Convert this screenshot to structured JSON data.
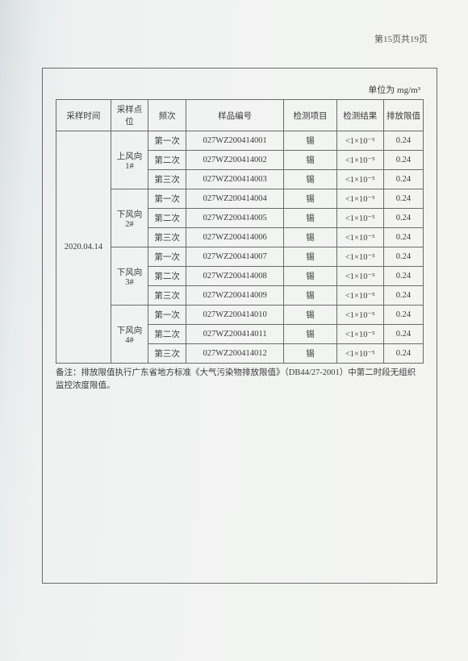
{
  "pageNumber": "第15页共19页",
  "unitLabel": "单位为 mg/m³",
  "headers": {
    "time": "采样时间",
    "point": "采样点位",
    "freq": "频次",
    "code": "样品编号",
    "item": "检测项目",
    "result": "检测结果",
    "limit": "排放限值"
  },
  "samplingDate": "2020.04.14",
  "points": [
    {
      "name": "上风向1#",
      "rows": [
        {
          "freq": "第一次",
          "code": "027WZ200414001",
          "item": "锡",
          "result": "<1×10⁻⁵",
          "limit": "0.24"
        },
        {
          "freq": "第二次",
          "code": "027WZ200414002",
          "item": "锡",
          "result": "<1×10⁻⁵",
          "limit": "0.24"
        },
        {
          "freq": "第三次",
          "code": "027WZ200414003",
          "item": "锡",
          "result": "<1×10⁻⁵",
          "limit": "0.24"
        }
      ]
    },
    {
      "name": "下风向2#",
      "rows": [
        {
          "freq": "第一次",
          "code": "027WZ200414004",
          "item": "锡",
          "result": "<1×10⁻⁵",
          "limit": "0.24"
        },
        {
          "freq": "第二次",
          "code": "027WZ200414005",
          "item": "锡",
          "result": "<1×10⁻⁵",
          "limit": "0.24"
        },
        {
          "freq": "第三次",
          "code": "027WZ200414006",
          "item": "锡",
          "result": "<1×10⁻⁵",
          "limit": "0.24"
        }
      ]
    },
    {
      "name": "下风向3#",
      "rows": [
        {
          "freq": "第一次",
          "code": "027WZ200414007",
          "item": "锡",
          "result": "<1×10⁻⁵",
          "limit": "0.24"
        },
        {
          "freq": "第二次",
          "code": "027WZ200414008",
          "item": "锡",
          "result": "<1×10⁻⁵",
          "limit": "0.24"
        },
        {
          "freq": "第三次",
          "code": "027WZ200414009",
          "item": "锡",
          "result": "<1×10⁻⁵",
          "limit": "0.24"
        }
      ]
    },
    {
      "name": "下风向4#",
      "rows": [
        {
          "freq": "第一次",
          "code": "027WZ200414010",
          "item": "锡",
          "result": "<1×10⁻⁵",
          "limit": "0.24"
        },
        {
          "freq": "第二次",
          "code": "027WZ200414011",
          "item": "锡",
          "result": "<1×10⁻⁵",
          "limit": "0.24"
        },
        {
          "freq": "第三次",
          "code": "027WZ200414012",
          "item": "锡",
          "result": "<1×10⁻⁵",
          "limit": "0.24"
        }
      ]
    }
  ],
  "note": "备注：排放限值执行广东省地方标准《大气污染物排放限值》（DB44/27-2001）中第二时段无组织监控浓度限值。",
  "style": {
    "borderColor": "#6a6a6a",
    "textColor": "#3a3a3a",
    "fontSizeBody": 10.5,
    "fontSizeSmall": 11
  }
}
